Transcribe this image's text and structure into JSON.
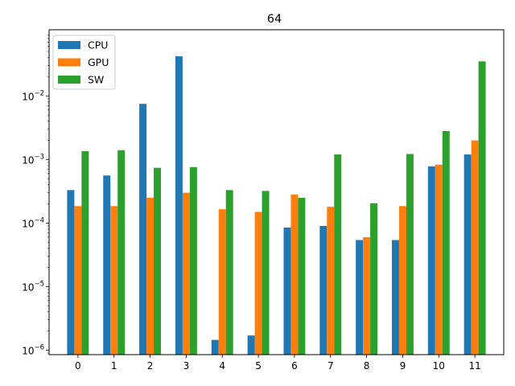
{
  "chart_data": {
    "type": "bar",
    "title": "64",
    "xlabel": "",
    "ylabel": "",
    "yscale": "log",
    "ylim": [
      8.5e-07,
      0.11
    ],
    "categories": [
      "0",
      "1",
      "2",
      "3",
      "4",
      "5",
      "6",
      "7",
      "8",
      "9",
      "10",
      "11"
    ],
    "y_ticks": [
      {
        "value": 1e-06,
        "label_base": "10",
        "label_exp": "−6"
      },
      {
        "value": 1e-05,
        "label_base": "10",
        "label_exp": "−5"
      },
      {
        "value": 0.0001,
        "label_base": "10",
        "label_exp": "−4"
      },
      {
        "value": 0.001,
        "label_base": "10",
        "label_exp": "−3"
      },
      {
        "value": 0.01,
        "label_base": "10",
        "label_exp": "−2"
      }
    ],
    "series": [
      {
        "name": "CPU",
        "color": "#1f77b4",
        "values": [
          0.00033,
          0.00056,
          0.0075,
          0.042,
          1.45e-06,
          1.7e-06,
          8.5e-05,
          9e-05,
          5.4e-05,
          5.4e-05,
          0.00078,
          0.0012
        ]
      },
      {
        "name": "GPU",
        "color": "#ff7f0e",
        "values": [
          0.000185,
          0.000185,
          0.00025,
          0.0003,
          0.000165,
          0.00015,
          0.00028,
          0.00018,
          6e-05,
          0.000185,
          0.00083,
          0.002
        ]
      },
      {
        "name": "SW",
        "color": "#2ca02c",
        "values": [
          0.00135,
          0.0014,
          0.00074,
          0.00076,
          0.00033,
          0.00032,
          0.00025,
          0.0012,
          0.000205,
          0.00122,
          0.0028,
          0.035
        ]
      }
    ],
    "grid": false,
    "legend_position": "top-left"
  }
}
